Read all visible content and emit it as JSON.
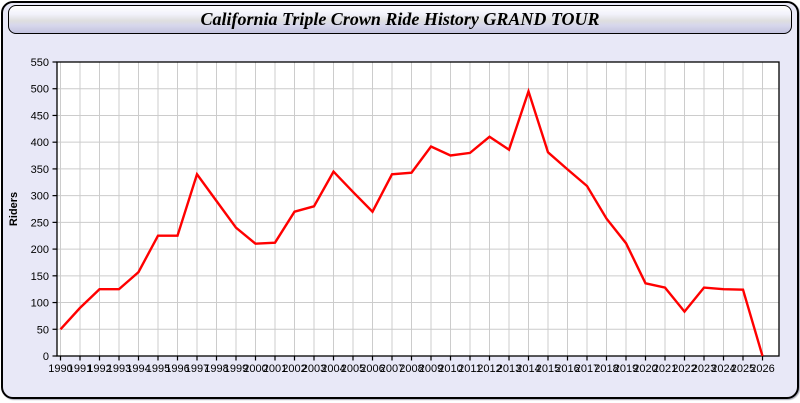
{
  "header": {
    "title": "California Triple Crown Ride History GRAND TOUR"
  },
  "chart_data": {
    "type": "line",
    "title": "California Triple Crown Ride History GRAND TOUR",
    "xlabel": "",
    "ylabel": "Riders",
    "x": [
      1990,
      1991,
      1992,
      1993,
      1994,
      1995,
      1996,
      1997,
      1998,
      1999,
      2000,
      2001,
      2002,
      2003,
      2004,
      2005,
      2006,
      2007,
      2008,
      2009,
      2010,
      2011,
      2012,
      2013,
      2014,
      2015,
      2016,
      2017,
      2018,
      2019,
      2020,
      2021,
      2022,
      2023,
      2024,
      2025,
      2026
    ],
    "series": [
      {
        "name": "Riders",
        "values": [
          50,
          90,
          125,
          125,
          157,
          225,
          225,
          340,
          290,
          240,
          210,
          212,
          270,
          280,
          345,
          307,
          270,
          340,
          343,
          392,
          375,
          380,
          410,
          386,
          495,
          381,
          349,
          318,
          257,
          211,
          136,
          128,
          83,
          128,
          125,
          124,
          0
        ]
      }
    ],
    "ylim": [
      0,
      550
    ],
    "ytick_step": 50,
    "grid": true,
    "legend": "none",
    "colors": {
      "line": "#ff0000",
      "plot_background": "#ffffff",
      "grid": "#cccccc",
      "axis": "#000000",
      "tick_label": "#000000",
      "page_background": "#e8e8f7"
    }
  }
}
